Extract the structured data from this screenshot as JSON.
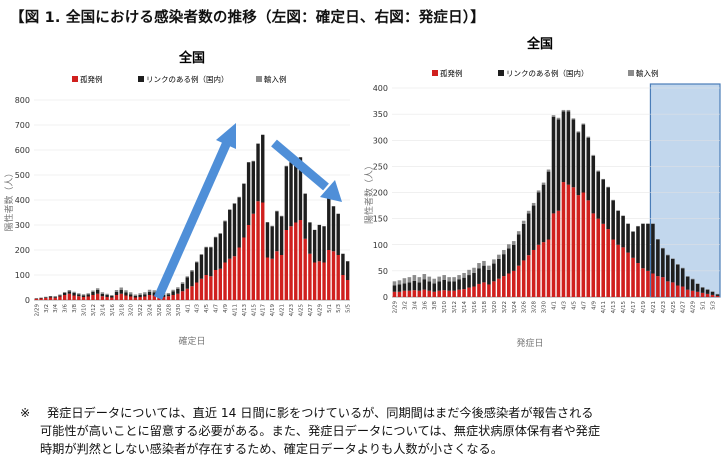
{
  "heading": "【図 1.  全国における感染者数の推移（左図：確定日、右図：発症日）】",
  "note": {
    "mark": "※",
    "line1": "発症日データについては、直近 14 日間に影をつけているが、同期間はまだ今後感染者が報告される",
    "line2": "可能性が高いことに留意する必要がある。また、発症日データについては、無症状病原体保有者や発症",
    "line3": "時期が判然としない感染者が存在するため、確定日データよりも人数が小さくなる。"
  },
  "colors": {
    "sporadic": "#d0201e",
    "linked": "#1e1e1e",
    "imported": "#8c8c8c",
    "shade": "#a8c6e6",
    "shade_border": "#4a7db8",
    "arrow": "#4f8fd8"
  },
  "chart_data": [
    {
      "type": "bar",
      "stacked": true,
      "title": "全国",
      "xlabel": "確定日",
      "ylabel": "陽性者数（人）",
      "ylim": [
        0,
        800
      ],
      "yticks": [
        0,
        100,
        200,
        300,
        400,
        500,
        600,
        700,
        800
      ],
      "legend": [
        "孤発例",
        "リンクのある例（国内）",
        "輸入例"
      ],
      "legend_position": "top",
      "categories": [
        "2/29",
        "3/1",
        "3/2",
        "3/3",
        "3/4",
        "3/5",
        "3/6",
        "3/7",
        "3/8",
        "3/9",
        "3/10",
        "3/11",
        "3/12",
        "3/13",
        "3/14",
        "3/15",
        "3/16",
        "3/17",
        "3/18",
        "3/19",
        "3/20",
        "3/21",
        "3/22",
        "3/23",
        "3/24",
        "3/25",
        "3/26",
        "3/27",
        "3/28",
        "3/29",
        "3/30",
        "3/31",
        "4/1",
        "4/2",
        "4/3",
        "4/4",
        "4/5",
        "4/6",
        "4/7",
        "4/8",
        "4/9",
        "4/10",
        "4/11",
        "4/12",
        "4/13",
        "4/14",
        "4/15",
        "4/16",
        "4/17",
        "4/18",
        "4/19",
        "4/20",
        "4/21",
        "4/22",
        "4/23",
        "4/24",
        "4/25",
        "4/26",
        "4/27",
        "4/28",
        "4/29",
        "4/30",
        "5/1",
        "5/2",
        "5/3",
        "5/4",
        "5/5"
      ],
      "series": [
        {
          "name": "孤発例",
          "values": [
            5,
            6,
            8,
            10,
            9,
            14,
            20,
            25,
            18,
            15,
            12,
            14,
            20,
            25,
            15,
            12,
            10,
            20,
            25,
            18,
            14,
            10,
            12,
            14,
            20,
            18,
            14,
            12,
            15,
            20,
            25,
            35,
            45,
            55,
            70,
            85,
            100,
            95,
            120,
            125,
            150,
            165,
            175,
            210,
            250,
            300,
            345,
            395,
            390,
            170,
            165,
            195,
            180,
            280,
            295,
            310,
            320,
            245,
            185,
            150,
            155,
            150,
            200,
            195,
            180,
            100,
            80
          ]
        },
        {
          "name": "リンクのある例（国内）",
          "values": [
            2,
            3,
            3,
            4,
            4,
            5,
            8,
            10,
            10,
            8,
            7,
            8,
            12,
            15,
            10,
            8,
            6,
            12,
            15,
            12,
            9,
            6,
            8,
            9,
            13,
            12,
            10,
            9,
            8,
            15,
            20,
            30,
            45,
            60,
            80,
            95,
            110,
            115,
            130,
            140,
            165,
            195,
            210,
            200,
            215,
            250,
            210,
            230,
            270,
            140,
            130,
            160,
            155,
            255,
            255,
            240,
            250,
            180,
            125,
            130,
            145,
            145,
            210,
            180,
            165,
            85,
            75
          ]
        },
        {
          "name": "輸入例",
          "values": [
            1,
            1,
            2,
            2,
            3,
            3,
            4,
            5,
            5,
            4,
            4,
            5,
            6,
            7,
            6,
            5,
            4,
            8,
            10,
            9,
            8,
            6,
            7,
            8,
            8,
            9,
            8,
            7,
            5,
            6,
            6,
            6,
            5,
            5,
            4,
            4,
            3,
            3,
            3,
            3,
            3,
            3,
            3,
            3,
            2,
            2,
            2,
            2,
            2,
            2,
            2,
            2,
            2,
            2,
            2,
            2,
            2,
            2,
            1,
            1,
            1,
            1,
            1,
            1,
            1,
            1,
            1
          ]
        }
      ]
    },
    {
      "type": "bar",
      "stacked": true,
      "title": "全国",
      "xlabel": "発症日",
      "ylabel": "陽性者数（人）",
      "ylim": [
        0,
        400
      ],
      "yticks": [
        0,
        50,
        100,
        150,
        200,
        250,
        300,
        350,
        400
      ],
      "legend": [
        "孤発例",
        "リンクのある例（国内）",
        "輸入例"
      ],
      "legend_position": "top",
      "shaded_last_days": 14,
      "categories": [
        "2/29",
        "3/1",
        "3/2",
        "3/3",
        "3/4",
        "3/5",
        "3/6",
        "3/7",
        "3/8",
        "3/9",
        "3/10",
        "3/11",
        "3/12",
        "3/13",
        "3/14",
        "3/15",
        "3/16",
        "3/17",
        "3/18",
        "3/19",
        "3/20",
        "3/21",
        "3/22",
        "3/23",
        "3/24",
        "3/25",
        "3/26",
        "3/27",
        "3/28",
        "3/29",
        "3/30",
        "3/31",
        "4/1",
        "4/2",
        "4/3",
        "4/4",
        "4/5",
        "4/6",
        "4/7",
        "4/8",
        "4/9",
        "4/10",
        "4/11",
        "4/12",
        "4/13",
        "4/14",
        "4/15",
        "4/16",
        "4/17",
        "4/18",
        "4/19",
        "4/20",
        "4/21",
        "4/22",
        "4/23",
        "4/24",
        "4/25",
        "4/26",
        "4/27",
        "4/28",
        "4/29",
        "4/30",
        "5/1",
        "5/2",
        "5/3",
        "5/4"
      ],
      "series": [
        {
          "name": "孤発例",
          "values": [
            10,
            10,
            12,
            12,
            13,
            12,
            14,
            12,
            10,
            12,
            13,
            12,
            12,
            14,
            15,
            18,
            20,
            25,
            28,
            24,
            30,
            35,
            40,
            45,
            50,
            60,
            70,
            80,
            90,
            100,
            105,
            110,
            160,
            165,
            220,
            215,
            210,
            195,
            200,
            185,
            160,
            150,
            140,
            130,
            110,
            100,
            95,
            85,
            75,
            65,
            55,
            50,
            45,
            40,
            38,
            30,
            28,
            22,
            20,
            14,
            12,
            10,
            8,
            6,
            4,
            2
          ]
        },
        {
          "name": "リンクのある例（国内）",
          "values": [
            12,
            14,
            14,
            16,
            18,
            16,
            20,
            18,
            16,
            18,
            20,
            18,
            18,
            20,
            22,
            24,
            26,
            30,
            32,
            28,
            34,
            38,
            42,
            48,
            50,
            60,
            70,
            80,
            85,
            100,
            110,
            130,
            185,
            175,
            135,
            140,
            130,
            120,
            130,
            120,
            110,
            90,
            85,
            80,
            75,
            65,
            60,
            55,
            50,
            70,
            85,
            90,
            95,
            70,
            55,
            50,
            45,
            40,
            35,
            25,
            22,
            15,
            10,
            8,
            6,
            3
          ]
        },
        {
          "name": "輸入例",
          "values": [
            8,
            8,
            10,
            10,
            11,
            10,
            10,
            9,
            9,
            9,
            9,
            8,
            8,
            8,
            9,
            10,
            10,
            10,
            9,
            8,
            8,
            8,
            8,
            8,
            7,
            6,
            6,
            5,
            5,
            4,
            4,
            4,
            3,
            3,
            3,
            3,
            2,
            2,
            2,
            2,
            2,
            2,
            1,
            1,
            1,
            1,
            1,
            1,
            1,
            1,
            1,
            1,
            1,
            1,
            1,
            1,
            1,
            1,
            1,
            1,
            1,
            1,
            1,
            1,
            1,
            1
          ]
        }
      ]
    }
  ]
}
